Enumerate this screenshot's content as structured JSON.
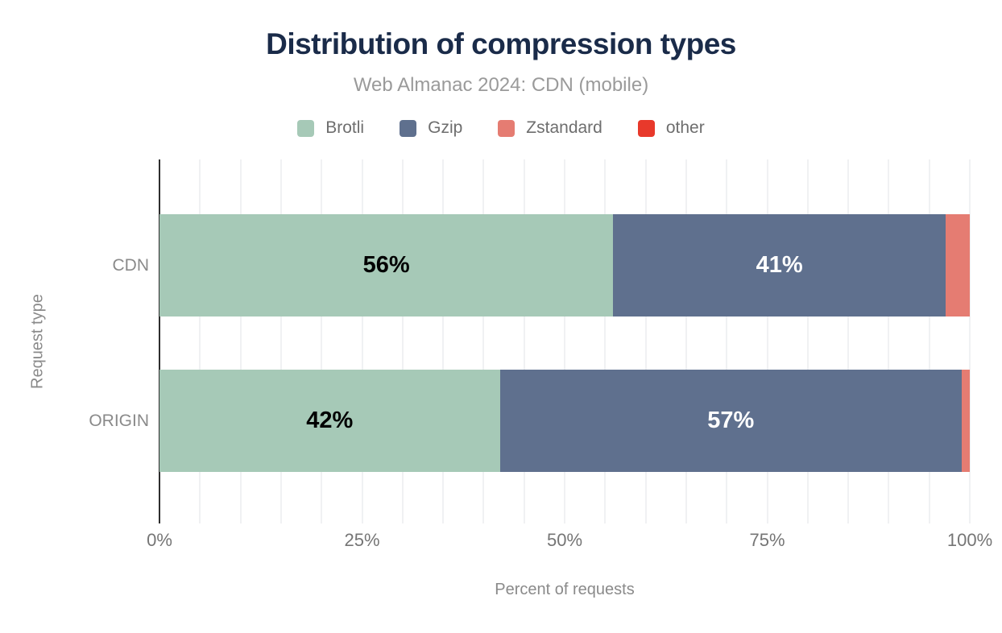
{
  "header": {
    "title": "Distribution of compression types",
    "subtitle": "Web Almanac 2024: CDN (mobile)"
  },
  "chart_data": {
    "type": "bar",
    "orientation": "horizontal",
    "stacked": true,
    "title": "Distribution of compression types",
    "subtitle": "Web Almanac 2024: CDN (mobile)",
    "categories": [
      "CDN",
      "ORIGIN"
    ],
    "series": [
      {
        "name": "Brotli",
        "color": "#a6c9b7",
        "label_color": "#000000",
        "values": [
          56,
          42
        ]
      },
      {
        "name": "Gzip",
        "color": "#5f708e",
        "label_color": "#ffffff",
        "values": [
          41,
          57
        ]
      },
      {
        "name": "Zstandard",
        "color": "#e57c72",
        "label_color": "#ffffff",
        "values": [
          3,
          1
        ]
      },
      {
        "name": "other",
        "color": "#e8392b",
        "label_color": "#ffffff",
        "values": [
          0,
          0
        ]
      }
    ],
    "visible_bar_labels": [
      "56%",
      "41%",
      "42%",
      "57%"
    ],
    "label_min_percent": 10,
    "xlabel": "Percent of requests",
    "ylabel": "Request type",
    "xlim": [
      0,
      100
    ],
    "xticks": [
      {
        "percent": 0,
        "label": "0%"
      },
      {
        "percent": 25,
        "label": "25%"
      },
      {
        "percent": 50,
        "label": "50%"
      },
      {
        "percent": 75,
        "label": "75%"
      },
      {
        "percent": 100,
        "label": "100%"
      }
    ],
    "gridline_step_percent": 5,
    "grid": true,
    "legend_position": "top"
  },
  "colors": {
    "title_text": "#1a2b49",
    "subtitle_text": "#9a9a9a",
    "legend_text": "#6e6e6e",
    "category_text": "#8a8a8a",
    "tick_text": "#757575",
    "axis_title_text": "#8a8a8a",
    "axis_line": "#2e2e2e",
    "gridline": "#f0f1f3",
    "background": "#ffffff"
  }
}
